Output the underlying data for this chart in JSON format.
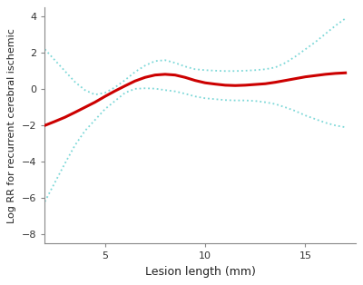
{
  "xlim": [
    2.0,
    17.5
  ],
  "ylim": [
    -8.5,
    4.5
  ],
  "yticks": [
    -8,
    -6,
    -4,
    -2,
    0,
    2,
    4
  ],
  "xticks": [
    5,
    10,
    15
  ],
  "xlabel": "Lesion length (mm)",
  "ylabel": "Log RR for recurrent cerebral ischemic",
  "main_color": "#cc0000",
  "ci_color": "#7dd8d8",
  "bg_color": "#ffffff",
  "main_lw": 2.2,
  "ci_lw": 1.3,
  "main_x": [
    2.0,
    2.5,
    3.0,
    3.5,
    4.0,
    4.5,
    5.0,
    5.5,
    6.0,
    6.5,
    7.0,
    7.5,
    8.0,
    8.5,
    9.0,
    9.5,
    10.0,
    10.5,
    11.0,
    11.5,
    12.0,
    12.5,
    13.0,
    13.5,
    14.0,
    14.5,
    15.0,
    15.5,
    16.0,
    16.5,
    17.0
  ],
  "main_y": [
    -2.0,
    -1.78,
    -1.55,
    -1.28,
    -1.0,
    -0.72,
    -0.4,
    -0.1,
    0.18,
    0.45,
    0.65,
    0.78,
    0.82,
    0.78,
    0.65,
    0.48,
    0.35,
    0.28,
    0.22,
    0.2,
    0.22,
    0.26,
    0.3,
    0.38,
    0.48,
    0.58,
    0.68,
    0.75,
    0.82,
    0.87,
    0.9
  ],
  "ci_upper_x": [
    2.0,
    2.5,
    3.0,
    3.5,
    4.0,
    4.5,
    5.0,
    5.5,
    6.0,
    6.5,
    7.0,
    7.5,
    8.0,
    8.5,
    9.0,
    9.5,
    10.0,
    10.5,
    11.0,
    11.5,
    12.0,
    12.5,
    13.0,
    13.5,
    14.0,
    14.5,
    15.0,
    15.5,
    16.0,
    16.5,
    17.0
  ],
  "ci_upper_y": [
    2.2,
    1.6,
    1.0,
    0.4,
    -0.05,
    -0.3,
    -0.2,
    0.1,
    0.5,
    0.95,
    1.3,
    1.55,
    1.6,
    1.45,
    1.25,
    1.1,
    1.05,
    1.02,
    1.0,
    1.0,
    1.02,
    1.05,
    1.1,
    1.2,
    1.45,
    1.8,
    2.2,
    2.6,
    3.05,
    3.5,
    3.9
  ],
  "ci_lower_x": [
    2.0,
    2.5,
    3.0,
    3.5,
    4.0,
    4.5,
    5.0,
    5.5,
    6.0,
    6.5,
    7.0,
    7.5,
    8.0,
    8.5,
    9.0,
    9.5,
    10.0,
    10.5,
    11.0,
    11.5,
    12.0,
    12.5,
    13.0,
    13.5,
    14.0,
    14.5,
    15.0,
    15.5,
    16.0,
    16.5,
    17.0
  ],
  "ci_lower_y": [
    -6.2,
    -5.15,
    -4.1,
    -3.1,
    -2.3,
    -1.7,
    -1.1,
    -0.65,
    -0.2,
    0.02,
    0.05,
    0.03,
    -0.05,
    -0.12,
    -0.25,
    -0.4,
    -0.5,
    -0.55,
    -0.6,
    -0.62,
    -0.62,
    -0.65,
    -0.72,
    -0.82,
    -1.0,
    -1.2,
    -1.45,
    -1.65,
    -1.85,
    -2.0,
    -2.1
  ],
  "spine_color": "#888888",
  "tick_color": "#333333",
  "label_fontsize": 9,
  "tick_fontsize": 8
}
